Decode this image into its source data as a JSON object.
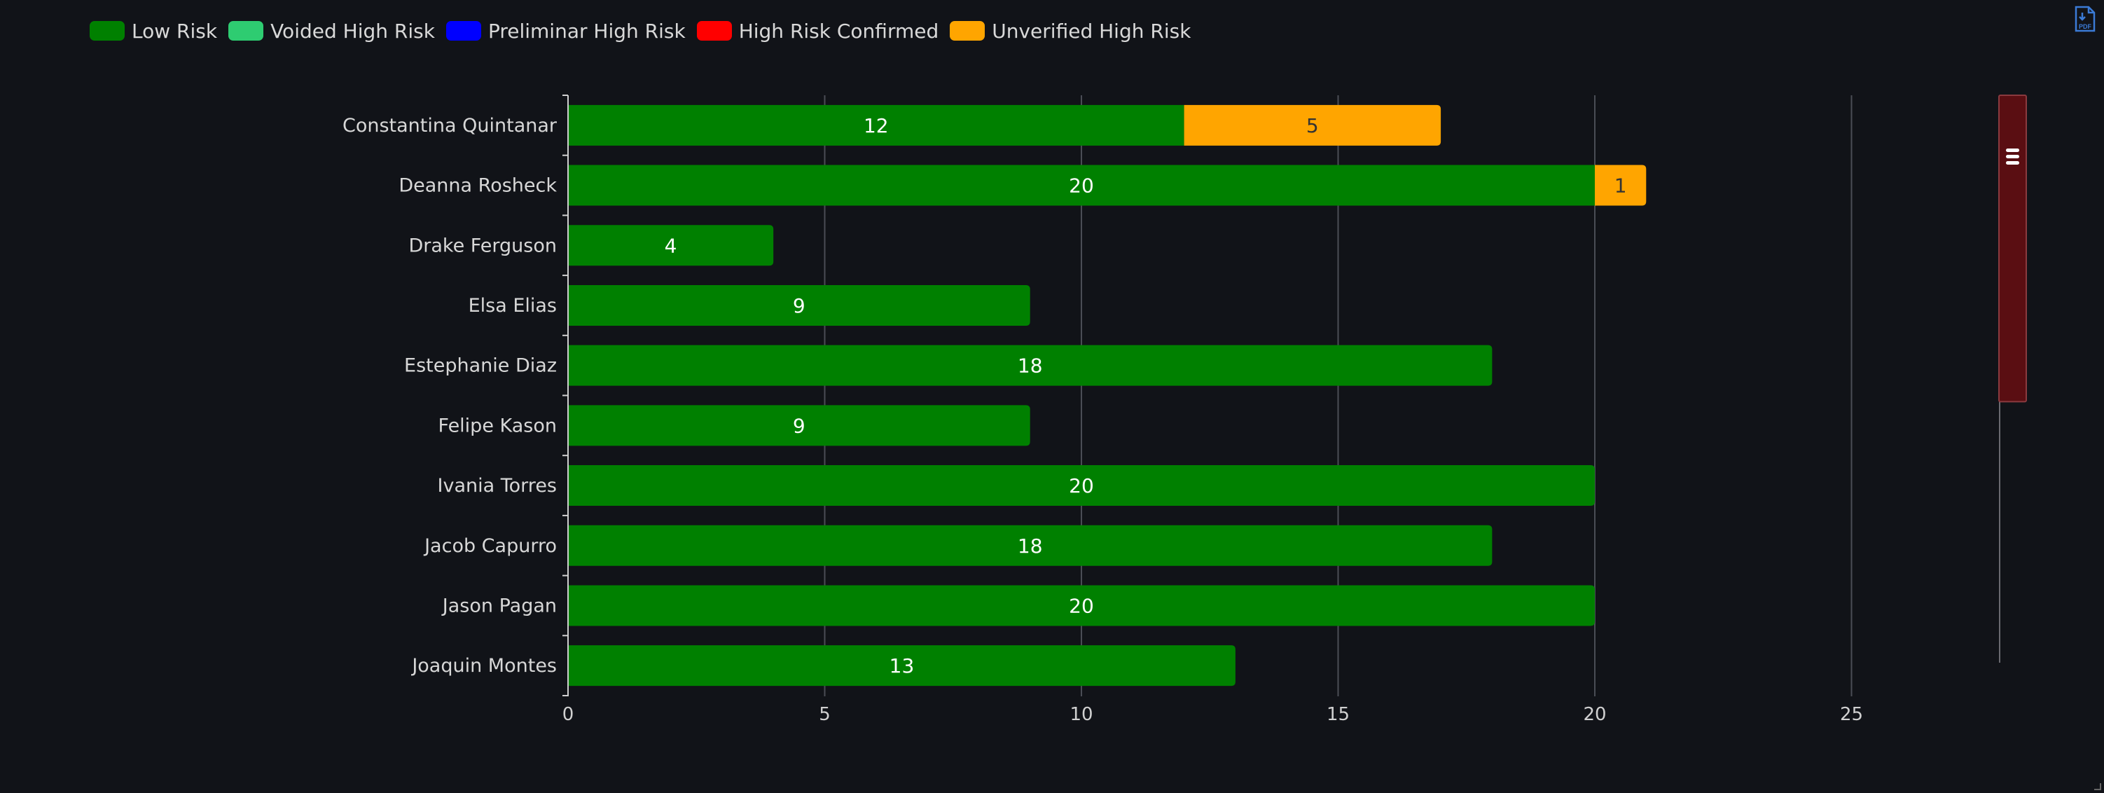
{
  "legend": [
    {
      "label": "Low Risk",
      "color": "#008000"
    },
    {
      "label": "Voided High Risk",
      "color": "#2ecc71"
    },
    {
      "label": "Preliminar High Risk",
      "color": "#0000ff"
    },
    {
      "label": "High Risk Confirmed",
      "color": "#ff0000"
    },
    {
      "label": "Unverified High Risk",
      "color": "#ffa500"
    }
  ],
  "toolbar": {
    "pdf_icon": "pdf-download-icon"
  },
  "chart_data": {
    "type": "bar",
    "orientation": "horizontal",
    "stacked": true,
    "categories": [
      "Constantina Quintanar",
      "Deanna Rosheck",
      "Drake Ferguson",
      "Elsa Elias",
      "Estephanie Diaz",
      "Felipe Kason",
      "Ivania Torres",
      "Jacob Capurro",
      "Jason Pagan",
      "Joaquin Montes"
    ],
    "series": [
      {
        "name": "Low Risk",
        "color": "#008000",
        "values": [
          12,
          20,
          4,
          9,
          18,
          9,
          20,
          18,
          20,
          13
        ]
      },
      {
        "name": "Voided High Risk",
        "color": "#2ecc71",
        "values": [
          0,
          0,
          0,
          0,
          0,
          0,
          0,
          0,
          0,
          0
        ]
      },
      {
        "name": "Preliminar High Risk",
        "color": "#0000ff",
        "values": [
          0,
          0,
          0,
          0,
          0,
          0,
          0,
          0,
          0,
          0
        ]
      },
      {
        "name": "High Risk Confirmed",
        "color": "#ff0000",
        "values": [
          0,
          0,
          0,
          0,
          0,
          0,
          0,
          0,
          0,
          0
        ]
      },
      {
        "name": "Unverified High Risk",
        "color": "#ffa500",
        "values": [
          5,
          1,
          0,
          0,
          0,
          0,
          0,
          0,
          0,
          0
        ]
      }
    ],
    "x_ticks": [
      0,
      5,
      10,
      15,
      20,
      25
    ],
    "xlim": [
      0,
      28
    ],
    "grid": true,
    "legend_position": "top-left",
    "scrollbar": {
      "position_fraction": 0.0,
      "visible_fraction": 0.54
    }
  }
}
